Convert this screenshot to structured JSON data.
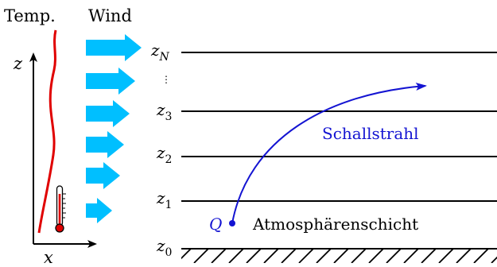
{
  "diagram": {
    "header": {
      "temp_label": "Temp.",
      "wind_label": "Wind"
    },
    "axes": {
      "z_label": "z",
      "x_label": "x"
    },
    "layers": {
      "z0": {
        "base": "z",
        "sub": "0"
      },
      "z1": {
        "base": "z",
        "sub": "1"
      },
      "z2": {
        "base": "z",
        "sub": "2"
      },
      "z3": {
        "base": "z",
        "sub": "3"
      },
      "zN": {
        "base": "z",
        "sub": "N"
      },
      "dots": "⋮"
    },
    "source_label": "Q",
    "ray_label": "Schallstrahl",
    "layer_label": "Atmosphärenschicht",
    "colors": {
      "wind_arrow": "#00BFFF",
      "temperature_curve": "#E00000",
      "ray": "#1414D2",
      "text_default": "#000000"
    },
    "icons": {
      "thermometer": "thermometer-icon",
      "wind": "wind-arrow-icon"
    }
  }
}
